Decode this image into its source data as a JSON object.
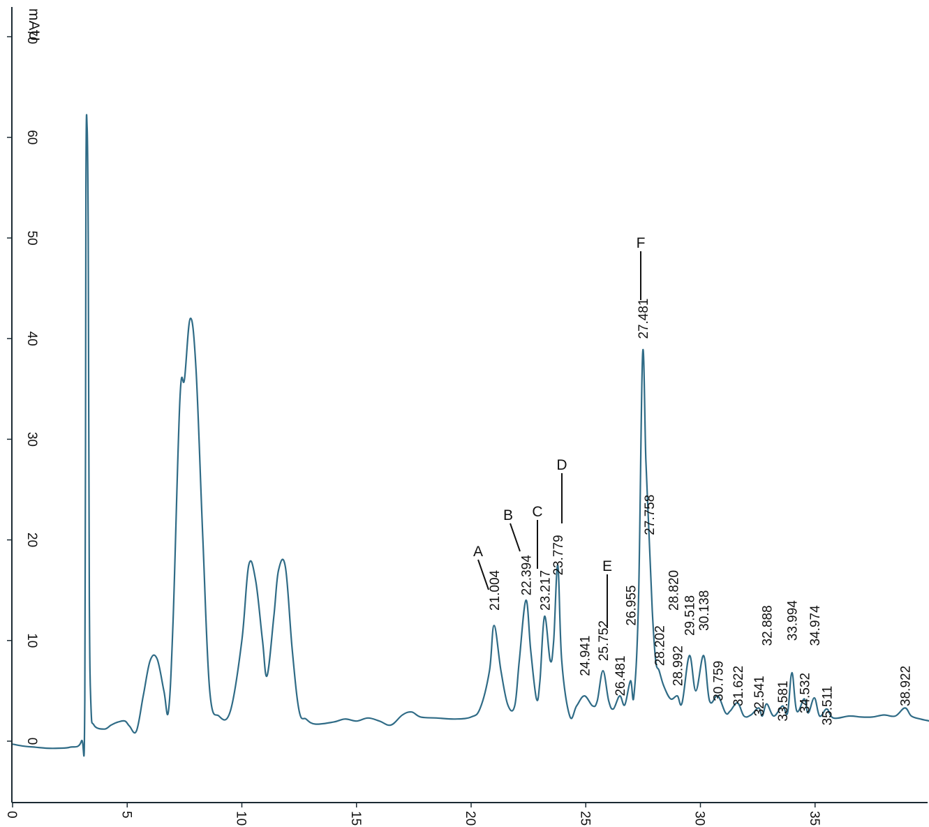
{
  "chart_data": {
    "type": "line",
    "title": "",
    "xlabel": "",
    "ylabel": "mAU",
    "xlim": [
      0,
      40
    ],
    "ylim": [
      -6,
      72
    ],
    "x_ticks": [
      0,
      5,
      10,
      15,
      20,
      25,
      30,
      35
    ],
    "y_ticks": [
      0,
      10,
      20,
      30,
      40,
      50,
      60,
      70
    ],
    "x_tick_labels": [
      "0",
      "5",
      "10",
      "15",
      "20",
      "25",
      "30",
      "35"
    ],
    "y_tick_labels": [
      "0",
      "10",
      "20",
      "30",
      "40",
      "50",
      "60",
      "70"
    ],
    "grid": false,
    "series": [
      {
        "name": "",
        "color": "#2f6b86",
        "x": [
          0.0,
          0.5,
          1.0,
          1.5,
          2.0,
          2.5,
          3.0,
          3.15,
          3.2,
          3.25,
          3.3,
          3.35,
          3.42,
          3.55,
          4.0,
          4.3,
          4.6,
          4.9,
          5.1,
          5.4,
          5.7,
          6.0,
          6.3,
          6.6,
          6.8,
          7.0,
          7.3,
          7.5,
          7.75,
          8.0,
          8.3,
          8.6,
          9.0,
          9.5,
          10.0,
          10.3,
          10.6,
          10.9,
          11.1,
          11.4,
          11.6,
          11.9,
          12.2,
          12.5,
          12.8,
          13.2,
          14.0,
          14.5,
          15.0,
          15.5,
          16.0,
          16.5,
          17.0,
          17.4,
          17.8,
          18.5,
          19.3,
          20.0,
          20.4,
          20.8,
          21.0,
          21.3,
          21.6,
          21.9,
          22.1,
          22.39,
          22.6,
          22.85,
          23.0,
          23.2,
          23.45,
          23.6,
          23.78,
          23.95,
          24.3,
          24.6,
          24.94,
          25.3,
          25.5,
          25.75,
          26.0,
          26.2,
          26.48,
          26.7,
          26.95,
          27.1,
          27.3,
          27.48,
          27.62,
          27.76,
          27.9,
          28.05,
          28.2,
          28.4,
          28.7,
          28.99,
          29.2,
          29.52,
          29.8,
          30.14,
          30.4,
          30.76,
          31.1,
          31.3,
          31.62,
          31.9,
          32.2,
          32.54,
          32.7,
          32.89,
          33.2,
          33.58,
          33.8,
          33.99,
          34.2,
          34.53,
          34.7,
          34.97,
          35.2,
          35.51,
          35.8,
          36.5,
          37.0,
          37.5,
          38.0,
          38.5,
          38.92,
          39.2,
          39.6,
          40.0
        ],
        "y": [
          -0.3,
          -0.5,
          -0.6,
          -0.7,
          -0.7,
          -0.6,
          0.0,
          4.0,
          55.0,
          61.0,
          50.0,
          14.0,
          3.5,
          1.6,
          1.2,
          1.6,
          1.9,
          2.0,
          1.5,
          1.0,
          4.5,
          8.0,
          8.2,
          5.0,
          3.0,
          12.0,
          34.0,
          36.0,
          42.0,
          37.0,
          20.0,
          5.0,
          2.5,
          3.0,
          10.0,
          17.5,
          16.0,
          10.0,
          6.5,
          12.5,
          17.0,
          17.3,
          9.0,
          3.0,
          2.2,
          1.7,
          1.9,
          2.2,
          2.0,
          2.3,
          2.0,
          1.6,
          2.6,
          2.9,
          2.4,
          2.3,
          2.2,
          2.4,
          3.3,
          7.0,
          11.5,
          7.0,
          3.6,
          3.5,
          8.0,
          14.0,
          9.0,
          4.2,
          6.0,
          12.4,
          8.0,
          10.0,
          17.5,
          8.0,
          2.5,
          3.5,
          4.5,
          3.5,
          4.0,
          7.0,
          4.0,
          3.2,
          4.5,
          3.6,
          6.0,
          4.5,
          14.0,
          38.5,
          28.0,
          20.5,
          13.0,
          8.0,
          7.0,
          5.5,
          4.2,
          4.5,
          3.8,
          8.5,
          5.0,
          8.5,
          4.0,
          4.5,
          2.8,
          3.0,
          3.8,
          2.5,
          2.6,
          3.3,
          2.5,
          3.7,
          2.5,
          3.5,
          2.8,
          6.8,
          3.0,
          4.2,
          2.8,
          4.3,
          2.5,
          3.2,
          2.3,
          2.5,
          2.4,
          2.4,
          2.6,
          2.5,
          3.3,
          2.5,
          2.2,
          2.0
        ]
      }
    ],
    "peak_labels": [
      "21.004",
      "22.394",
      "23.217",
      "23.779",
      "24.941",
      "25.752",
      "26.481",
      "26.955",
      "27.481",
      "27.758",
      "28.202",
      "28.820",
      "28.992",
      "29.518",
      "30.138",
      "30.759",
      "31.622",
      "32.541",
      "32.888",
      "33.581",
      "33.994",
      "34.532",
      "34.974",
      "35.511",
      "38.922"
    ],
    "peak_label_x": [
      21.004,
      22.394,
      23.217,
      23.779,
      24.941,
      25.752,
      26.481,
      26.955,
      27.481,
      27.758,
      28.202,
      28.82,
      28.992,
      29.518,
      30.138,
      30.759,
      31.622,
      32.541,
      32.888,
      33.581,
      33.994,
      34.532,
      34.974,
      35.511,
      38.922
    ],
    "peak_label_top_y": [
      17.0,
      18.5,
      17.0,
      20.5,
      10.5,
      12.0,
      8.5,
      15.5,
      44.0,
      24.5,
      11.5,
      17.0,
      9.5,
      14.5,
      15.0,
      8.0,
      7.5,
      6.5,
      13.5,
      6.0,
      14.0,
      6.8,
      13.5,
      5.5,
      7.5
    ],
    "annotations": [
      {
        "letter": "A",
        "peak": 21.004
      },
      {
        "letter": "B",
        "peak": 22.394
      },
      {
        "letter": "C",
        "peak": 23.217
      },
      {
        "letter": "D",
        "peak": 23.779
      },
      {
        "letter": "E",
        "peak": 25.752
      },
      {
        "letter": "F",
        "peak": 27.481
      }
    ]
  }
}
